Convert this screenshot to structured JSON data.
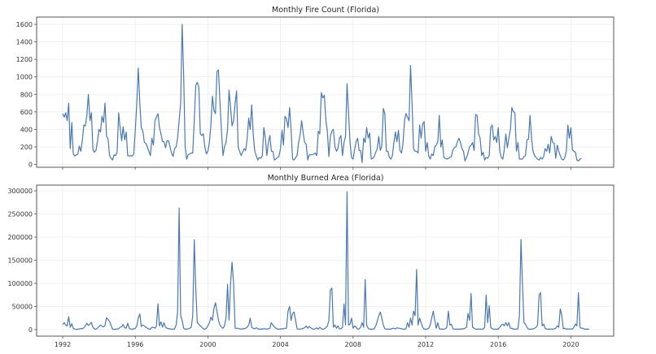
{
  "chart_data": [
    {
      "type": "line",
      "title": "Monthly Fire Count (Florida)",
      "xlabel": "",
      "ylabel": "",
      "ylim": [
        -50,
        1680
      ],
      "yticks": [
        0,
        200,
        400,
        600,
        800,
        1000,
        1200,
        1400,
        1600
      ],
      "xticks": [
        "1992",
        "1996",
        "2000",
        "2004",
        "2008",
        "2012",
        "2016",
        "2020"
      ],
      "grid": true,
      "legend": "none",
      "color": "#4a78b0",
      "x_start": "1992-01",
      "x_step": "month",
      "values": [
        580,
        540,
        590,
        500,
        700,
        180,
        480,
        120,
        95,
        110,
        115,
        210,
        150,
        280,
        450,
        440,
        560,
        800,
        500,
        590,
        170,
        140,
        160,
        260,
        400,
        370,
        550,
        480,
        700,
        320,
        290,
        100,
        70,
        50,
        110,
        100,
        140,
        590,
        420,
        270,
        430,
        280,
        370,
        100,
        95,
        100,
        95,
        120,
        380,
        700,
        1100,
        700,
        420,
        380,
        250,
        240,
        200,
        150,
        100,
        300,
        220,
        500,
        540,
        580,
        420,
        350,
        260,
        260,
        190,
        270,
        270,
        200,
        130,
        90,
        180,
        200,
        300,
        500,
        700,
        1600,
        1000,
        200,
        60,
        110,
        120,
        130,
        130,
        500,
        900,
        940,
        880,
        350,
        330,
        350,
        200,
        120,
        150,
        250,
        450,
        780,
        620,
        580,
        1060,
        1080,
        700,
        380,
        100,
        200,
        250,
        400,
        850,
        650,
        440,
        500,
        700,
        840,
        200,
        150,
        100,
        140,
        180,
        160,
        300,
        530,
        400,
        680,
        350,
        150,
        100,
        50,
        80,
        70,
        100,
        420,
        300,
        100,
        250,
        330,
        150,
        150,
        50,
        60,
        80,
        90,
        180,
        390,
        220,
        550,
        520,
        420,
        650,
        400,
        60,
        50,
        80,
        100,
        250,
        340,
        500,
        360,
        250,
        230,
        50,
        110,
        110,
        110,
        120,
        130,
        100,
        380,
        350,
        820,
        760,
        790,
        500,
        380,
        90,
        320,
        380,
        400,
        210,
        150,
        180,
        300,
        330,
        100,
        250,
        320,
        920,
        600,
        250,
        80,
        60,
        170,
        260,
        300,
        160,
        160,
        20,
        300,
        250,
        420,
        300,
        360,
        60,
        70,
        90,
        140,
        180,
        320,
        160,
        210,
        640,
        580,
        150,
        150,
        80,
        60,
        100,
        250,
        370,
        260,
        390,
        160,
        130,
        230,
        500,
        580,
        540,
        500,
        1130,
        700,
        180,
        150,
        150,
        130,
        450,
        300,
        460,
        490,
        150,
        250,
        100,
        60,
        120,
        100,
        200,
        220,
        260,
        560,
        200,
        280,
        80,
        70,
        60,
        70,
        80,
        90,
        170,
        190,
        200,
        260,
        300,
        250,
        180,
        150,
        40,
        80,
        130,
        200,
        220,
        250,
        160,
        570,
        560,
        350,
        300,
        100,
        140,
        50,
        80,
        70,
        100,
        420,
        450,
        280,
        320,
        250,
        420,
        150,
        80,
        60,
        170,
        350,
        190,
        300,
        400,
        650,
        600,
        590,
        150,
        250,
        60,
        60,
        60,
        90,
        100,
        280,
        290,
        560,
        300,
        150,
        100,
        80,
        60,
        50,
        80,
        60,
        90,
        180,
        150,
        230,
        130,
        320,
        250,
        240,
        70,
        220,
        150,
        100,
        60,
        50,
        80,
        150,
        450,
        300,
        420,
        170,
        150,
        140,
        50,
        40,
        60,
        70
      ]
    },
    {
      "type": "line",
      "title": "Monthly Burned Area (Florida)",
      "xlabel": "",
      "ylabel": "",
      "ylim": [
        -15000,
        315000
      ],
      "yticks": [
        0,
        50000,
        100000,
        150000,
        200000,
        250000,
        300000
      ],
      "xticks": [
        "1992",
        "1996",
        "2000",
        "2004",
        "2008",
        "2012",
        "2016",
        "2020"
      ],
      "grid": true,
      "legend": "none",
      "color": "#4a78b0",
      "x_start": "1992-01",
      "x_step": "month",
      "values": [
        11000,
        15000,
        10000,
        8000,
        28000,
        5000,
        13000,
        3000,
        1000,
        500,
        1000,
        1500,
        2500,
        2000,
        4000,
        8000,
        14000,
        9000,
        12000,
        16000,
        5000,
        1500,
        1000,
        3000,
        7000,
        10000,
        7000,
        6000,
        9000,
        26000,
        22000,
        18000,
        9000,
        1000,
        500,
        1000,
        1500,
        2000,
        5000,
        6000,
        11000,
        4000,
        3000,
        14000,
        3000,
        1000,
        1000,
        1500,
        3000,
        8000,
        25000,
        34000,
        7000,
        10000,
        8000,
        5000,
        3000,
        1000,
        1000,
        5000,
        5000,
        3000,
        8000,
        56000,
        8000,
        17000,
        5000,
        15000,
        5000,
        3000,
        2000,
        2000,
        1000,
        1000,
        1500,
        10000,
        38000,
        263000,
        30000,
        20000,
        3000,
        1000,
        1000,
        2000,
        3000,
        5000,
        30000,
        194000,
        90000,
        15000,
        12000,
        8000,
        5000,
        2000,
        1000,
        3000,
        8000,
        15000,
        27000,
        20000,
        45000,
        58000,
        40000,
        20000,
        10000,
        5000,
        3000,
        8000,
        25000,
        98000,
        20000,
        100000,
        146000,
        100000,
        3000,
        3000,
        3000,
        2000,
        1000,
        2000,
        2000,
        3000,
        5000,
        10000,
        25000,
        5000,
        3000,
        2000,
        4000,
        2000,
        1000,
        1000,
        1500,
        2000,
        2000,
        1000,
        2000,
        3000,
        15000,
        10000,
        6000,
        3000,
        1000,
        1000,
        1500,
        2000,
        2000,
        3000,
        3000,
        40000,
        50000,
        20000,
        35000,
        38000,
        20000,
        2000,
        1000,
        1000,
        2000,
        3000,
        4000,
        8000,
        3000,
        7000,
        4000,
        2000,
        1000,
        2000,
        4000,
        1000,
        5000,
        2000,
        1000,
        2000,
        4000,
        8000,
        20000,
        85000,
        90000,
        5000,
        10000,
        3000,
        8000,
        2000,
        2000,
        5000,
        55000,
        10000,
        298000,
        10000,
        12000,
        25000,
        3000,
        8000,
        5000,
        1000,
        2000,
        5000,
        15000,
        5000,
        108000,
        10000,
        3000,
        1000,
        1000,
        1000,
        2000,
        8000,
        18000,
        30000,
        38000,
        25000,
        10000,
        2000,
        1000,
        1000,
        1000,
        1000,
        3000,
        3000,
        2000,
        4000,
        3000,
        3000,
        2000,
        1000,
        1000,
        2000,
        15000,
        5000,
        25000,
        10000,
        40000,
        30000,
        130000,
        10000,
        25000,
        15000,
        5000,
        1000,
        1000,
        1000,
        3000,
        10000,
        25000,
        40000,
        20000,
        3000,
        15000,
        2000,
        1000,
        1000,
        1000,
        2000,
        5000,
        40000,
        10000,
        12000,
        2000,
        1000,
        1000,
        1000,
        1000,
        1000,
        1500,
        2000,
        3000,
        5000,
        35000,
        20000,
        78000,
        5000,
        3000,
        1000,
        1000,
        1000,
        1000,
        1000,
        1000,
        5000,
        75000,
        15000,
        52000,
        5000,
        2000,
        1000,
        1000,
        1000,
        1000,
        5000,
        10000,
        12000,
        8000,
        15000,
        8000,
        15000,
        3000,
        3000,
        1000,
        1000,
        1000,
        2000,
        30000,
        195000,
        100000,
        15000,
        12000,
        5000,
        1000,
        1000,
        1000,
        2000,
        3000,
        5000,
        10000,
        75000,
        80000,
        8000,
        12000,
        3000,
        1000,
        1000,
        1000,
        1000,
        1000,
        2000,
        3000,
        8000,
        5000,
        45000,
        30000,
        2000,
        3000,
        1000,
        2000,
        1000,
        2000,
        1000,
        5000,
        12000,
        8000,
        80000,
        5000,
        3000,
        3000,
        1000,
        1000,
        1000,
        1000
      ]
    }
  ],
  "panels": {
    "top": {
      "title": "Monthly Fire Count (Florida)"
    },
    "bottom": {
      "title": "Monthly Burned Area (Florida)"
    }
  }
}
